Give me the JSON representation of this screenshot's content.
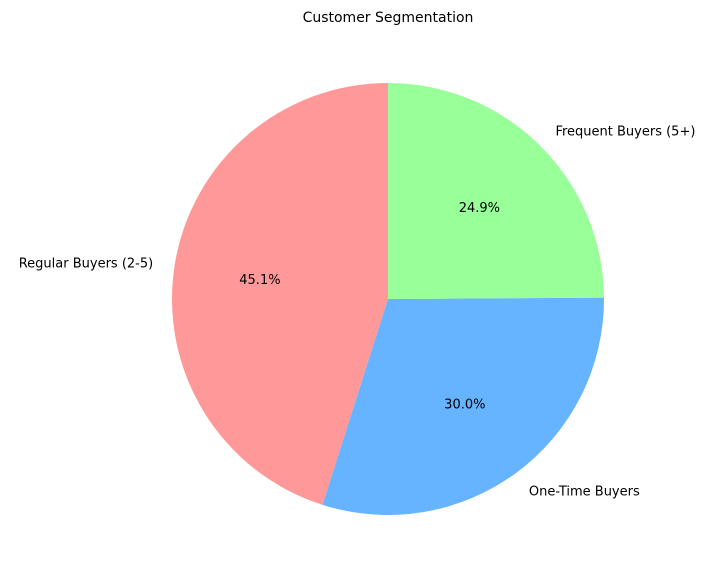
{
  "chart_data": {
    "type": "pie",
    "title": "Customer Segmentation",
    "start_angle_deg": 90,
    "direction": "counterclockwise",
    "slices": [
      {
        "label": "Regular Buyers (2-5)",
        "value": 45.1,
        "pct_label": "45.1%",
        "color": "#ff9999"
      },
      {
        "label": "One-Time Buyers",
        "value": 30.0,
        "pct_label": "30.0%",
        "color": "#66b3ff"
      },
      {
        "label": "Frequent Buyers (5+)",
        "value": 24.9,
        "pct_label": "24.9%",
        "color": "#99ff99"
      }
    ]
  }
}
